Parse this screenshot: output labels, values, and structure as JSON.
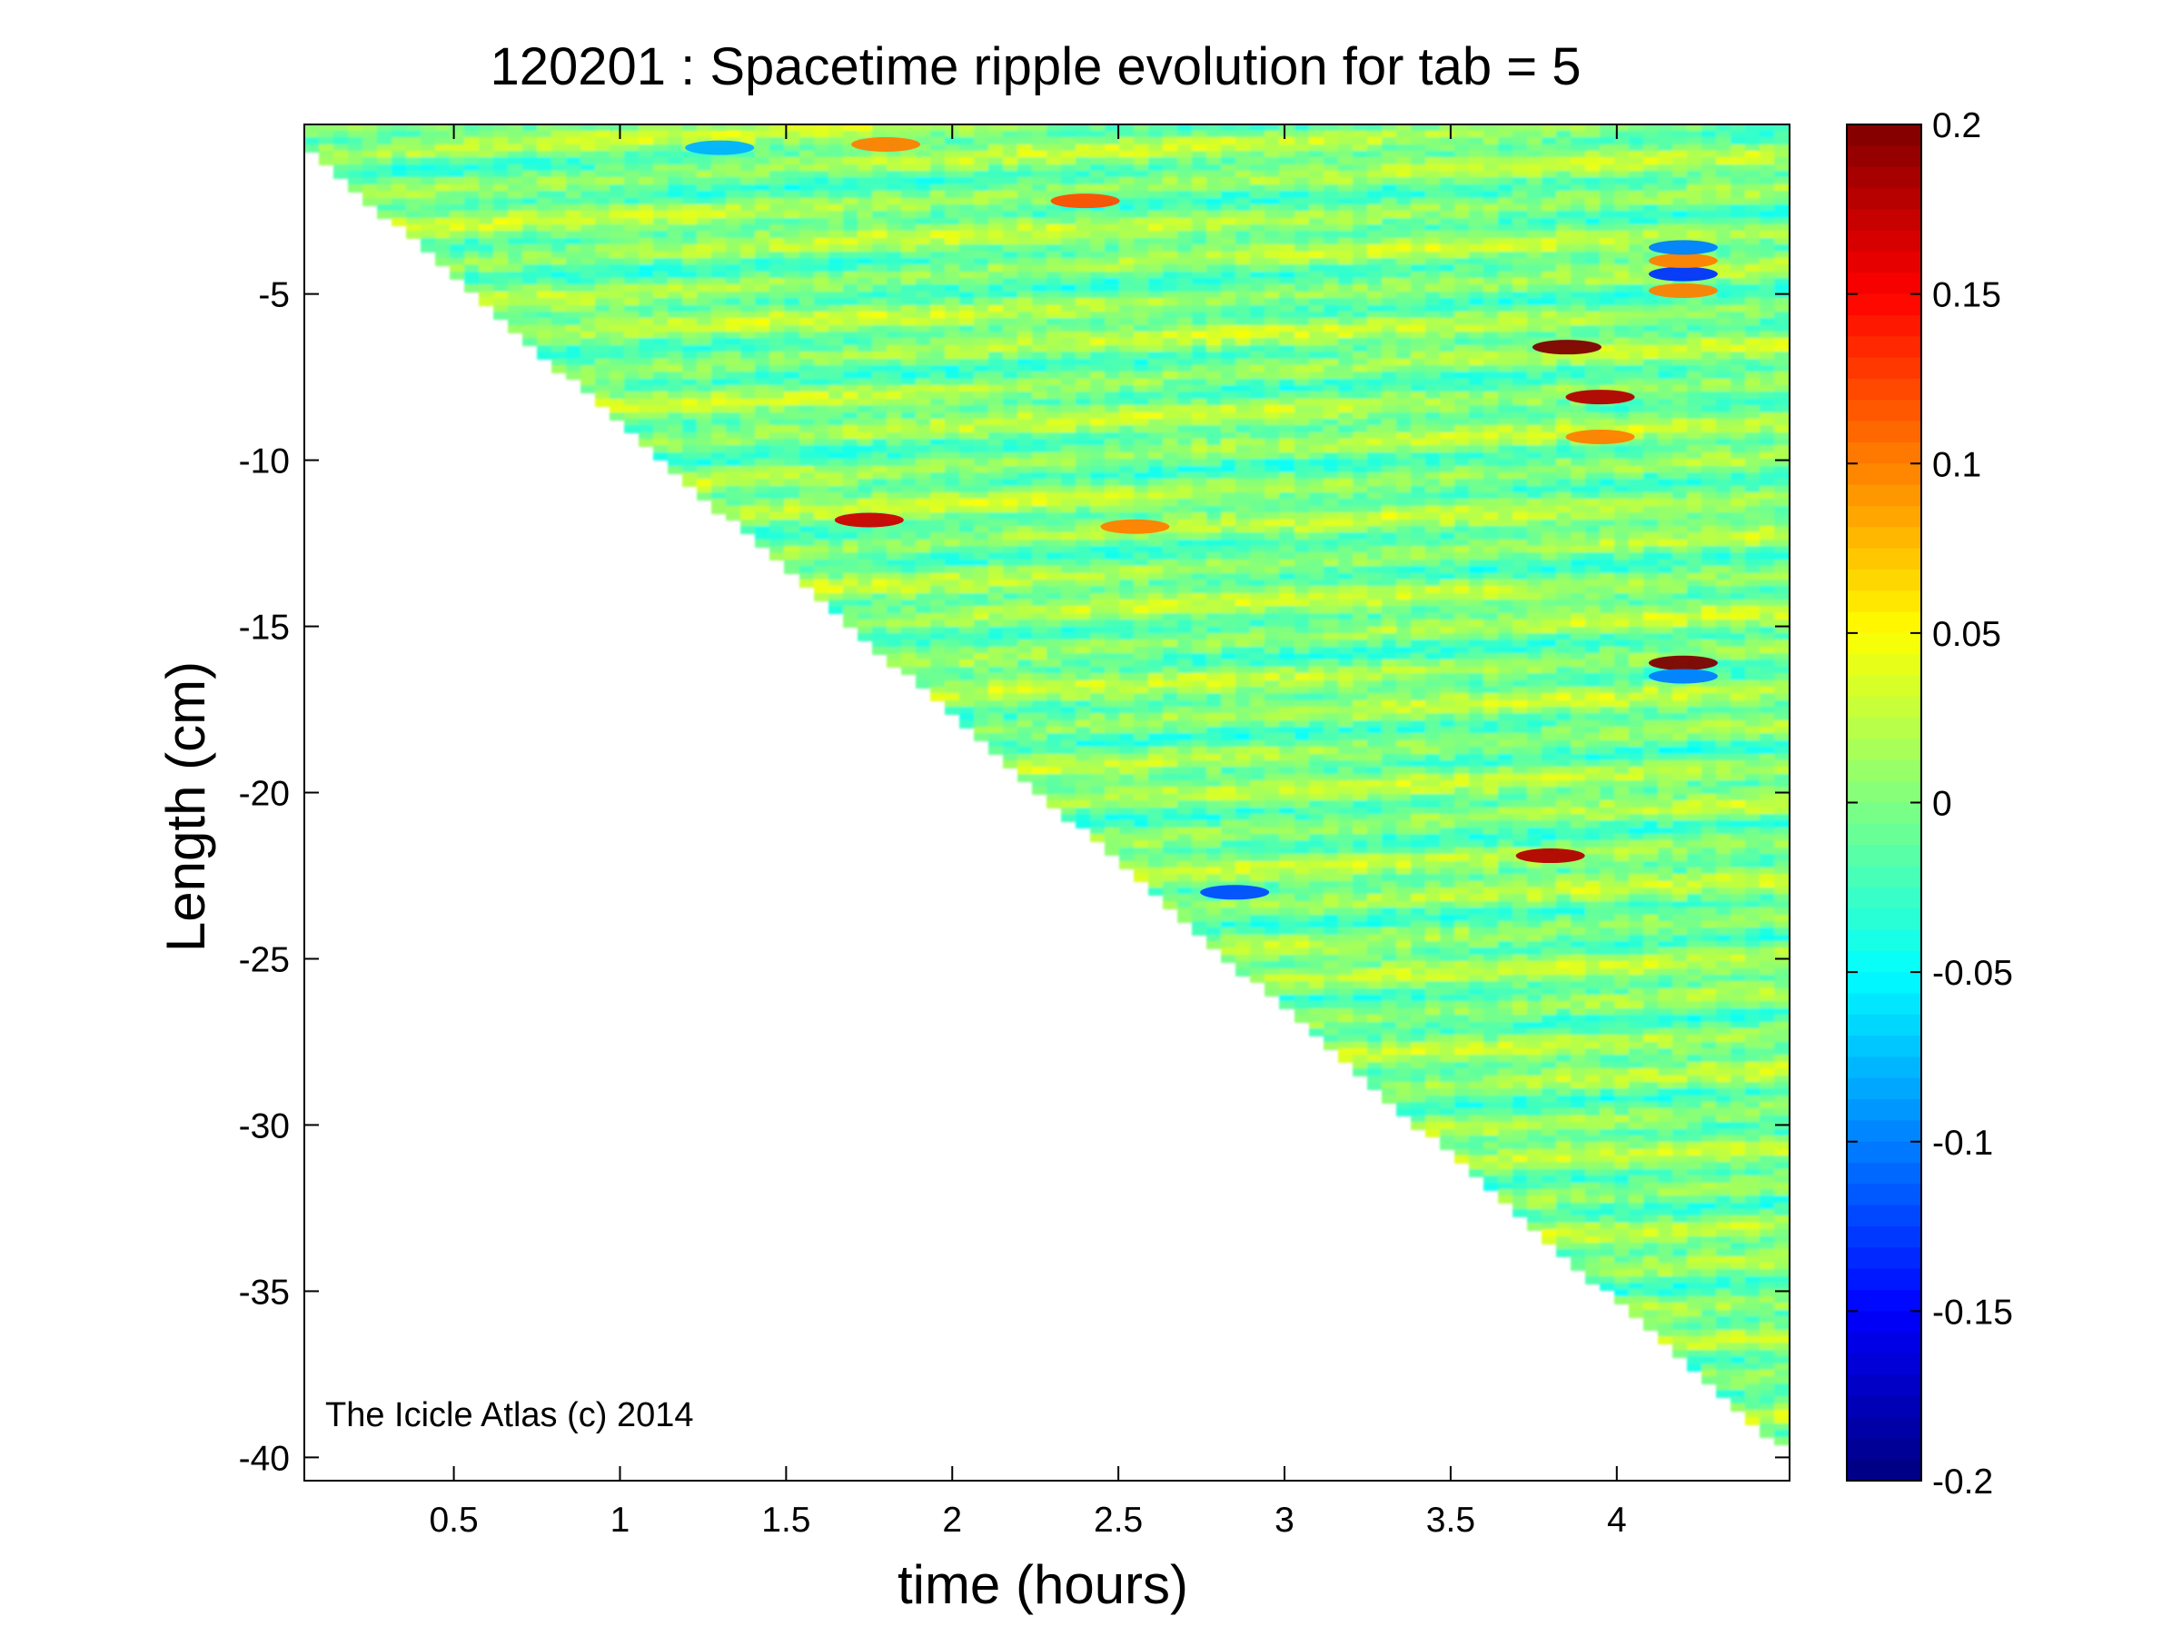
{
  "chart_data": {
    "type": "heatmap",
    "title": "120201 : Spacetime ripple evolution for tab = 5",
    "xlabel": "time (hours)",
    "ylabel": "Length (cm)",
    "xlim": [
      0.05,
      4.52
    ],
    "ylim": [
      -40.7,
      0.1
    ],
    "x_ticks": [
      0.5,
      1,
      1.5,
      2,
      2.5,
      3,
      3.5,
      4
    ],
    "x_tick_labels": [
      "0.5",
      "1",
      "1.5",
      "2",
      "2.5",
      "3",
      "3.5",
      "4"
    ],
    "y_ticks": [
      -5,
      -10,
      -15,
      -20,
      -25,
      -30,
      -35,
      -40
    ],
    "y_tick_labels": [
      "-5",
      "-10",
      "-15",
      "-20",
      "-25",
      "-30",
      "-35",
      "-40"
    ],
    "grid": false,
    "colormap": "jet",
    "colorbar": {
      "clim": [
        -0.2,
        0.2
      ],
      "ticks": [
        0.2,
        0.15,
        0.1,
        0.05,
        0,
        -0.05,
        -0.1,
        -0.15,
        -0.2
      ],
      "tick_labels": [
        "0.2",
        "0.15",
        "0.1",
        "0.05",
        "0",
        "-0.05",
        "-0.1",
        "-0.15",
        "-0.2"
      ]
    },
    "data_region": "triangular: icicle tip length grows linearly from about -0.5 cm at 0.05 h to about -39.7 cm at 4.5 h; cells below the tip are blank",
    "hotspots": [
      {
        "x": 1.75,
        "y": -11.8,
        "value": 0.17
      },
      {
        "x": 2.4,
        "y": -2.2,
        "value": 0.12
      },
      {
        "x": 2.55,
        "y": -12.0,
        "value": 0.1
      },
      {
        "x": 3.85,
        "y": -6.6,
        "value": 0.2
      },
      {
        "x": 3.95,
        "y": -8.1,
        "value": 0.18
      },
      {
        "x": 3.95,
        "y": -9.3,
        "value": 0.1
      },
      {
        "x": 4.2,
        "y": -16.1,
        "value": 0.2
      },
      {
        "x": 4.2,
        "y": -16.5,
        "value": -0.1
      },
      {
        "x": 3.8,
        "y": -21.9,
        "value": 0.18
      },
      {
        "x": 4.2,
        "y": -4.4,
        "value": -0.13
      },
      {
        "x": 4.2,
        "y": -4.0,
        "value": 0.1
      },
      {
        "x": 4.2,
        "y": -4.9,
        "value": 0.1
      },
      {
        "x": 4.2,
        "y": -3.6,
        "value": -0.1
      },
      {
        "x": 1.3,
        "y": -0.6,
        "value": -0.08
      },
      {
        "x": 1.8,
        "y": -0.5,
        "value": 0.1
      },
      {
        "x": 2.85,
        "y": -23.0,
        "value": -0.12
      }
    ]
  },
  "watermark": "The Icicle Atlas (c) 2014"
}
